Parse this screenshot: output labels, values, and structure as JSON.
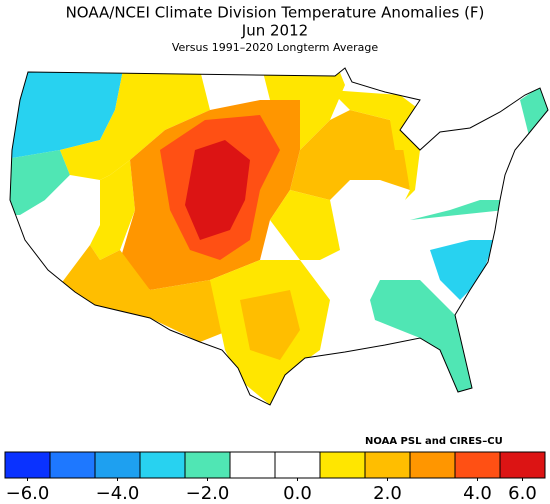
{
  "title": "NOAA/NCEI Climate Division Temperature Anomalies (F)",
  "period": "Jun 2012",
  "subtitle": "Versus 1991–2020 Longterm Average",
  "credit": "NOAA PSL and CIRES–CU",
  "colorbar": {
    "bounds": [
      -6,
      -5,
      -4,
      -3,
      -2,
      -1,
      0,
      1,
      2,
      3,
      4,
      5,
      6
    ],
    "colors": [
      "#0a32ff",
      "#1e78ff",
      "#1ea0f0",
      "#28d2f0",
      "#50e6b4",
      "#ffffff",
      "#ffffff",
      "#ffe600",
      "#ffbe00",
      "#ff9600",
      "#ff5014",
      "#dc1414"
    ],
    "ticks": [
      {
        "value": -6,
        "label": "−6.0"
      },
      {
        "value": -4,
        "label": "−4.0"
      },
      {
        "value": -2,
        "label": "−2.0"
      },
      {
        "value": 0,
        "label": "0.0"
      },
      {
        "value": 2,
        "label": "2.0"
      },
      {
        "value": 4,
        "label": "4.0"
      },
      {
        "value": 6,
        "label": "6.0"
      }
    ]
  }
}
